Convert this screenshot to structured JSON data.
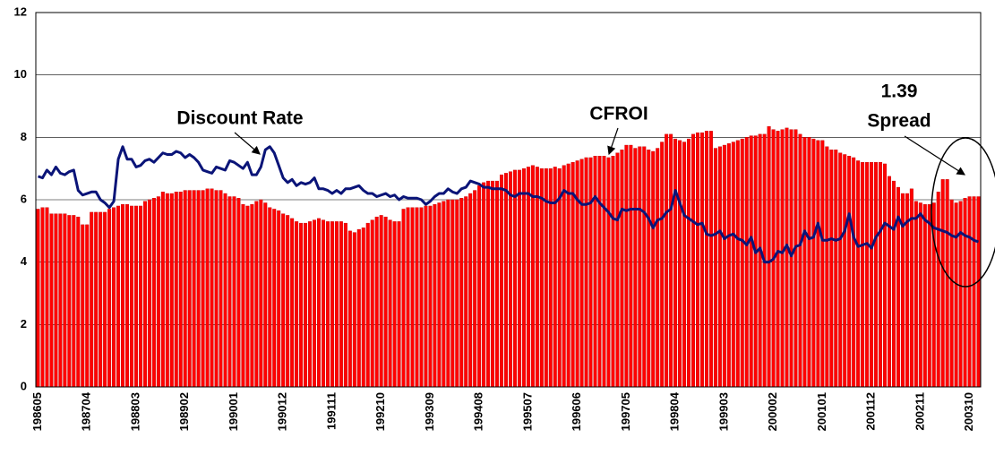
{
  "chart_data": {
    "type": "combo",
    "categories": [
      "198605",
      null,
      null,
      null,
      null,
      null,
      null,
      null,
      null,
      null,
      null,
      "198704",
      null,
      null,
      null,
      null,
      null,
      null,
      null,
      null,
      null,
      null,
      "198803",
      null,
      null,
      null,
      null,
      null,
      null,
      null,
      null,
      null,
      null,
      "198902",
      null,
      null,
      null,
      null,
      null,
      null,
      null,
      null,
      null,
      null,
      "199001",
      null,
      null,
      null,
      null,
      null,
      null,
      null,
      null,
      null,
      null,
      "199012",
      null,
      null,
      null,
      null,
      null,
      null,
      null,
      null,
      null,
      null,
      "199111",
      null,
      null,
      null,
      null,
      null,
      null,
      null,
      null,
      null,
      null,
      "199210",
      null,
      null,
      null,
      null,
      null,
      null,
      null,
      null,
      null,
      null,
      "199309",
      null,
      null,
      null,
      null,
      null,
      null,
      null,
      null,
      null,
      null,
      "199408",
      null,
      null,
      null,
      null,
      null,
      null,
      null,
      null,
      null,
      null,
      "199507",
      null,
      null,
      null,
      null,
      null,
      null,
      null,
      null,
      null,
      null,
      "199606",
      null,
      null,
      null,
      null,
      null,
      null,
      null,
      null,
      null,
      null,
      "199705",
      null,
      null,
      null,
      null,
      null,
      null,
      null,
      null,
      null,
      null,
      "199804",
      null,
      null,
      null,
      null,
      null,
      null,
      null,
      null,
      null,
      null,
      "199903",
      null,
      null,
      null,
      null,
      null,
      null,
      null,
      null,
      null,
      null,
      "200002",
      null,
      null,
      null,
      null,
      null,
      null,
      null,
      null,
      null,
      null,
      "200101",
      null,
      null,
      null,
      null,
      null,
      null,
      null,
      null,
      null,
      null,
      "200112",
      null,
      null,
      null,
      null,
      null,
      null,
      null,
      null,
      null,
      null,
      "200211",
      null,
      null,
      null,
      null,
      null,
      null,
      null,
      null,
      null,
      null,
      "200310",
      null,
      null
    ],
    "series": [
      {
        "name": "CFROI",
        "type": "bar",
        "color": "#ff0000",
        "values": [
          5.7,
          5.75,
          5.75,
          5.55,
          5.55,
          5.55,
          5.55,
          5.5,
          5.5,
          5.45,
          5.2,
          5.2,
          5.6,
          5.6,
          5.6,
          5.6,
          5.7,
          5.75,
          5.8,
          5.85,
          5.85,
          5.8,
          5.8,
          5.8,
          5.95,
          6.0,
          6.05,
          6.1,
          6.25,
          6.2,
          6.2,
          6.25,
          6.25,
          6.3,
          6.3,
          6.3,
          6.3,
          6.3,
          6.35,
          6.35,
          6.3,
          6.3,
          6.2,
          6.1,
          6.1,
          6.05,
          5.85,
          5.8,
          5.85,
          5.95,
          6.0,
          5.9,
          5.75,
          5.7,
          5.65,
          5.55,
          5.5,
          5.4,
          5.3,
          5.25,
          5.25,
          5.3,
          5.35,
          5.4,
          5.35,
          5.3,
          5.3,
          5.3,
          5.3,
          5.25,
          5.0,
          4.95,
          5.05,
          5.1,
          5.25,
          5.35,
          5.45,
          5.5,
          5.45,
          5.35,
          5.3,
          5.3,
          5.7,
          5.75,
          5.75,
          5.75,
          5.75,
          5.8,
          5.8,
          5.85,
          5.9,
          5.95,
          6.0,
          6.0,
          6.0,
          6.05,
          6.1,
          6.2,
          6.3,
          6.45,
          6.55,
          6.6,
          6.6,
          6.6,
          6.8,
          6.85,
          6.9,
          6.95,
          6.95,
          7.0,
          7.05,
          7.1,
          7.05,
          7.0,
          7.0,
          7.0,
          7.05,
          7.0,
          7.1,
          7.15,
          7.2,
          7.25,
          7.3,
          7.35,
          7.35,
          7.4,
          7.4,
          7.4,
          7.35,
          7.4,
          7.5,
          7.6,
          7.75,
          7.75,
          7.65,
          7.7,
          7.7,
          7.6,
          7.55,
          7.65,
          7.85,
          8.1,
          8.1,
          7.95,
          7.9,
          7.85,
          7.95,
          8.1,
          8.15,
          8.15,
          8.2,
          8.2,
          7.65,
          7.7,
          7.75,
          7.8,
          7.85,
          7.9,
          7.95,
          8.0,
          8.05,
          8.05,
          8.1,
          8.1,
          8.35,
          8.25,
          8.2,
          8.25,
          8.3,
          8.25,
          8.25,
          8.1,
          8.0,
          8.0,
          7.95,
          7.9,
          7.9,
          7.7,
          7.6,
          7.6,
          7.5,
          7.45,
          7.4,
          7.35,
          7.25,
          7.2,
          7.2,
          7.2,
          7.2,
          7.2,
          7.15,
          6.75,
          6.6,
          6.4,
          6.2,
          6.2,
          6.35,
          5.95,
          5.9,
          5.85,
          5.85,
          5.9,
          6.25,
          6.65,
          6.65,
          6.0,
          5.9,
          5.95,
          6.05,
          6.1,
          6.1,
          6.1
        ]
      },
      {
        "name": "Discount Rate",
        "type": "line",
        "color": "#0a1478",
        "values": [
          6.75,
          6.7,
          6.95,
          6.8,
          7.05,
          6.85,
          6.8,
          6.9,
          6.95,
          6.3,
          6.15,
          6.2,
          6.25,
          6.25,
          6.0,
          5.9,
          5.75,
          5.95,
          7.3,
          7.7,
          7.3,
          7.3,
          7.05,
          7.1,
          7.25,
          7.3,
          7.2,
          7.35,
          7.5,
          7.45,
          7.45,
          7.55,
          7.5,
          7.35,
          7.45,
          7.35,
          7.2,
          6.95,
          6.9,
          6.85,
          7.05,
          7.0,
          6.95,
          7.25,
          7.2,
          7.1,
          7.0,
          7.2,
          6.8,
          6.8,
          7.05,
          7.6,
          7.7,
          7.5,
          7.1,
          6.7,
          6.55,
          6.65,
          6.45,
          6.55,
          6.5,
          6.55,
          6.7,
          6.35,
          6.35,
          6.3,
          6.2,
          6.3,
          6.2,
          6.35,
          6.35,
          6.4,
          6.45,
          6.3,
          6.2,
          6.2,
          6.1,
          6.15,
          6.2,
          6.1,
          6.15,
          6.0,
          6.1,
          6.05,
          6.05,
          6.05,
          6.0,
          5.85,
          5.95,
          6.1,
          6.2,
          6.2,
          6.35,
          6.25,
          6.2,
          6.35,
          6.4,
          6.6,
          6.55,
          6.5,
          6.4,
          6.4,
          6.35,
          6.35,
          6.35,
          6.3,
          6.15,
          6.1,
          6.2,
          6.2,
          6.2,
          6.1,
          6.1,
          6.05,
          5.95,
          5.9,
          5.9,
          6.05,
          6.3,
          6.2,
          6.2,
          6.0,
          5.85,
          5.85,
          5.9,
          6.1,
          5.9,
          5.75,
          5.6,
          5.4,
          5.35,
          5.7,
          5.65,
          5.7,
          5.7,
          5.7,
          5.6,
          5.4,
          5.1,
          5.35,
          5.4,
          5.6,
          5.7,
          6.3,
          5.9,
          5.5,
          5.4,
          5.3,
          5.2,
          5.25,
          4.9,
          4.85,
          4.9,
          5.0,
          4.75,
          4.85,
          4.9,
          4.75,
          4.7,
          4.55,
          4.8,
          4.3,
          4.45,
          4.0,
          4.0,
          4.1,
          4.35,
          4.3,
          4.55,
          4.2,
          4.5,
          4.55,
          5.0,
          4.75,
          4.8,
          5.25,
          4.7,
          4.7,
          4.75,
          4.7,
          4.75,
          5.0,
          5.55,
          4.8,
          4.5,
          4.55,
          4.6,
          4.45,
          4.8,
          5.0,
          5.25,
          5.15,
          5.05,
          5.45,
          5.15,
          5.3,
          5.4,
          5.4,
          5.55,
          5.35,
          5.25,
          5.1,
          5.05,
          5.0,
          4.95,
          4.85,
          4.8,
          4.95,
          4.85,
          4.8,
          4.7,
          4.65
        ]
      }
    ],
    "annotations": [
      "1.39",
      "Spread"
    ],
    "ylim": [
      0,
      12
    ],
    "yticks": [
      0,
      2,
      4,
      6,
      8,
      10,
      12
    ],
    "grid": true
  }
}
